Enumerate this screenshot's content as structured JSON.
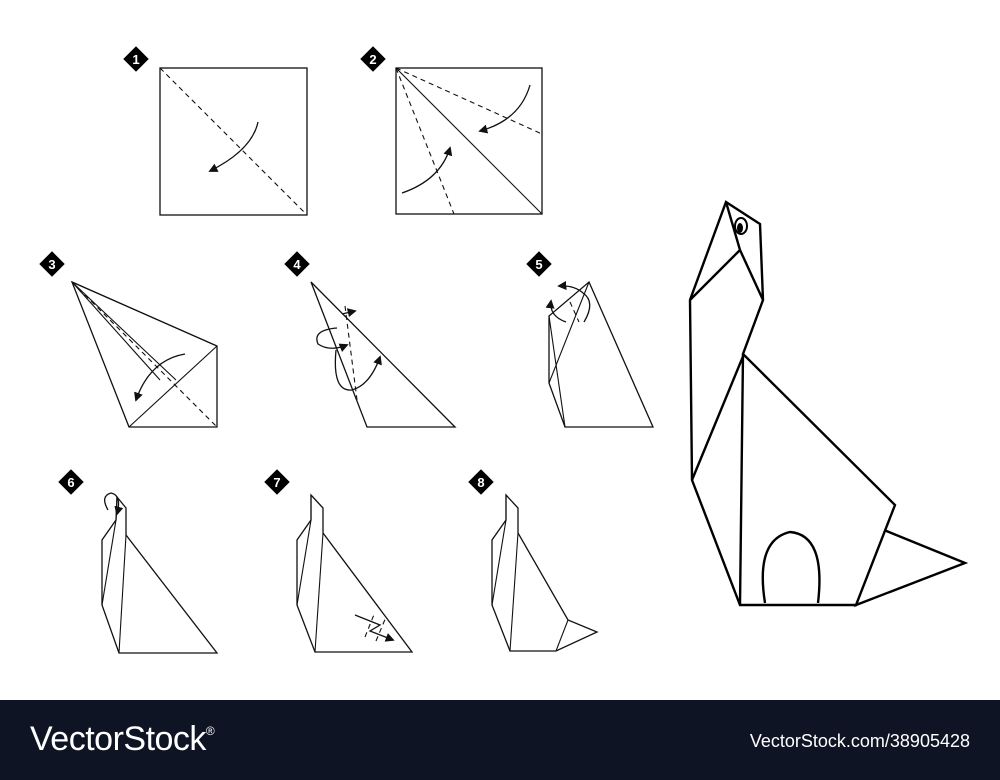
{
  "steps": [
    {
      "number": "1"
    },
    {
      "number": "2"
    },
    {
      "number": "3"
    },
    {
      "number": "4"
    },
    {
      "number": "5"
    },
    {
      "number": "6"
    },
    {
      "number": "7"
    },
    {
      "number": "8"
    }
  ],
  "footer": {
    "brand": "VectorStock",
    "trademark": "®",
    "stock_id": "VectorStock.com/38905428"
  },
  "colors": {
    "ink": "#111111",
    "background": "#ffffff",
    "footer_bg": "#0e1424",
    "footer_text": "#ffffff"
  }
}
